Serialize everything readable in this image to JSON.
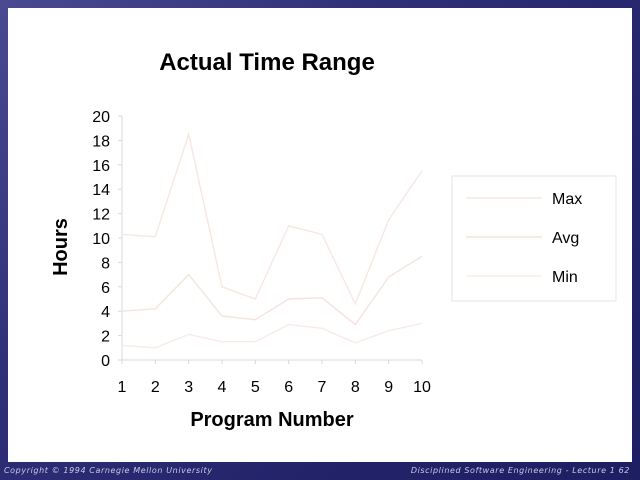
{
  "chart_data": {
    "type": "line",
    "title": "Actual Time Range",
    "xlabel": "Program Number",
    "ylabel": "Hours",
    "x": [
      1,
      2,
      3,
      4,
      5,
      6,
      7,
      8,
      9,
      10
    ],
    "ylim": [
      0,
      20
    ],
    "yticks": [
      0,
      2,
      4,
      6,
      8,
      10,
      12,
      14,
      16,
      18,
      20
    ],
    "grid": false,
    "legend_position": "right",
    "series": [
      {
        "name": "Max",
        "color": "#f7e7e2",
        "values": [
          10.3,
          10.1,
          18.5,
          6.0,
          5.0,
          11.0,
          10.3,
          4.6,
          11.5,
          15.5
        ]
      },
      {
        "name": "Avg",
        "color": "#f6e3dc",
        "values": [
          4.0,
          4.2,
          7.0,
          3.6,
          3.3,
          5.0,
          5.1,
          2.9,
          6.8,
          8.5
        ]
      },
      {
        "name": "Min",
        "color": "#f8ebe6",
        "values": [
          1.2,
          1.0,
          2.1,
          1.5,
          1.5,
          2.9,
          2.6,
          1.4,
          2.4,
          3.0
        ]
      }
    ]
  },
  "footer": {
    "left": "Copyright © 1994 Carnegie Mellon University",
    "right": "Disciplined Software Engineering - Lecture 1    62"
  }
}
